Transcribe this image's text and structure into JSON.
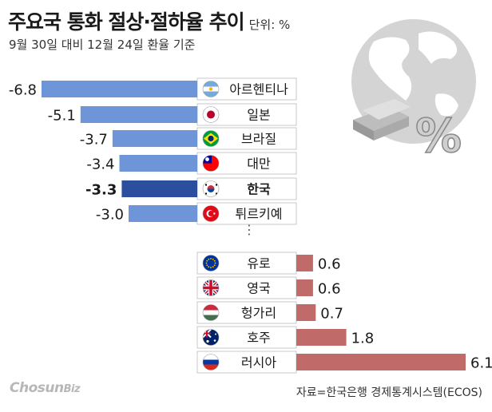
{
  "header": {
    "title": "주요국 통화 절상·절하율 추이",
    "unit": "단위: %",
    "subtitle": "9월 30일 대비 12월 24일 환율 기준"
  },
  "footer": {
    "source": "자료=한국은행 경제통계시스템(ECOS)",
    "logo_main": "Chosun",
    "logo_biz": "Biz"
  },
  "ellipsis": "⋮",
  "colors": {
    "negative": "#6e95d8",
    "highlight": "#2b4f9e",
    "positive": "#c06a6a",
    "label_box_border": "#bbbbbb"
  },
  "chart_data": {
    "type": "bar",
    "orientation": "horizontal",
    "categories": [
      "아르헨티나",
      "일본",
      "브라질",
      "대만",
      "한국",
      "튀르키예",
      "유로",
      "영국",
      "헝가리",
      "호주",
      "러시아"
    ],
    "values": [
      -6.8,
      -5.1,
      -3.7,
      -3.4,
      -3.3,
      -3.0,
      0.6,
      0.6,
      0.7,
      1.8,
      6.1
    ],
    "value_labels": [
      "-6.8",
      "-5.1",
      "-3.7",
      "-3.4",
      "-3.3",
      "-3.0",
      "0.6",
      "0.6",
      "0.7",
      "1.8",
      "6.1"
    ],
    "highlight": "한국",
    "flags": [
      "argentina",
      "japan",
      "brazil",
      "taiwan",
      "korea",
      "turkey",
      "eu",
      "uk",
      "hungary",
      "australia",
      "russia"
    ]
  }
}
